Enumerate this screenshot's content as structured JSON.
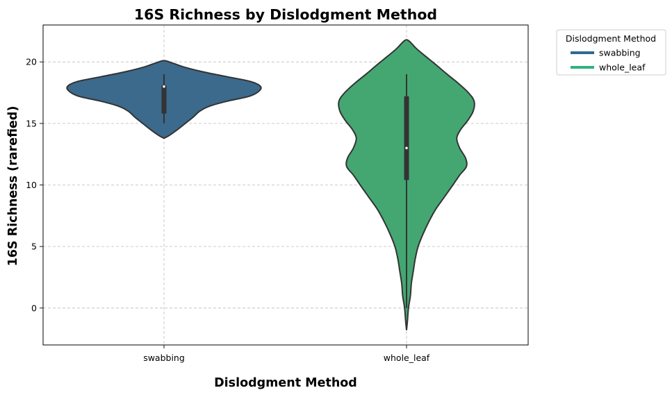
{
  "chart_data": {
    "type": "violin",
    "title": "16S Richness by Dislodgment Method",
    "xlabel": "Dislodgment Method",
    "ylabel": "16S Richness (rarefied)",
    "ylim": [
      -3,
      23
    ],
    "yticks": [
      0,
      5,
      10,
      15,
      20
    ],
    "grid": true,
    "legend": {
      "title": "Dislodgment Method",
      "placement": "outside-top-right",
      "entries": [
        "swabbing",
        "whole_leaf"
      ]
    },
    "categories": [
      "swabbing",
      "whole_leaf"
    ],
    "series": [
      {
        "name": "swabbing",
        "color": "#3b6a8c",
        "legend_color": "#2c6c8e",
        "box": {
          "q1": 15.8,
          "median": 18.0,
          "q3": 18.1,
          "whisker_low": 15.0,
          "whisker_high": 19.0
        },
        "density": [
          [
            13.8,
            0.0
          ],
          [
            14.0,
            0.05
          ],
          [
            14.5,
            0.14
          ],
          [
            15.0,
            0.22
          ],
          [
            15.5,
            0.3
          ],
          [
            16.0,
            0.37
          ],
          [
            16.4,
            0.47
          ],
          [
            16.8,
            0.65
          ],
          [
            17.2,
            0.88
          ],
          [
            17.6,
            0.98
          ],
          [
            18.0,
            1.0
          ],
          [
            18.4,
            0.9
          ],
          [
            18.8,
            0.65
          ],
          [
            19.2,
            0.4
          ],
          [
            19.6,
            0.2
          ],
          [
            19.9,
            0.09
          ],
          [
            20.1,
            0.0
          ]
        ]
      },
      {
        "name": "whole_leaf",
        "color": "#44a772",
        "legend_color": "#2fb47c",
        "box": {
          "q1": 10.4,
          "median": 13.0,
          "q3": 17.2,
          "whisker_low": 0.0,
          "whisker_high": 19.0
        },
        "density": [
          [
            -1.8,
            0.0
          ],
          [
            -1.0,
            0.01
          ],
          [
            0.0,
            0.02
          ],
          [
            1.0,
            0.04
          ],
          [
            2.0,
            0.05
          ],
          [
            3.0,
            0.07
          ],
          [
            4.0,
            0.09
          ],
          [
            5.0,
            0.12
          ],
          [
            6.0,
            0.17
          ],
          [
            7.0,
            0.23
          ],
          [
            8.0,
            0.3
          ],
          [
            9.0,
            0.39
          ],
          [
            10.0,
            0.48
          ],
          [
            10.8,
            0.55
          ],
          [
            11.5,
            0.62
          ],
          [
            12.2,
            0.61
          ],
          [
            13.0,
            0.55
          ],
          [
            13.8,
            0.52
          ],
          [
            14.5,
            0.56
          ],
          [
            15.2,
            0.63
          ],
          [
            16.0,
            0.69
          ],
          [
            16.8,
            0.7
          ],
          [
            17.5,
            0.64
          ],
          [
            18.3,
            0.53
          ],
          [
            19.0,
            0.42
          ],
          [
            19.8,
            0.3
          ],
          [
            20.5,
            0.19
          ],
          [
            21.1,
            0.1
          ],
          [
            21.6,
            0.04
          ],
          [
            21.8,
            0.0
          ]
        ]
      }
    ]
  }
}
